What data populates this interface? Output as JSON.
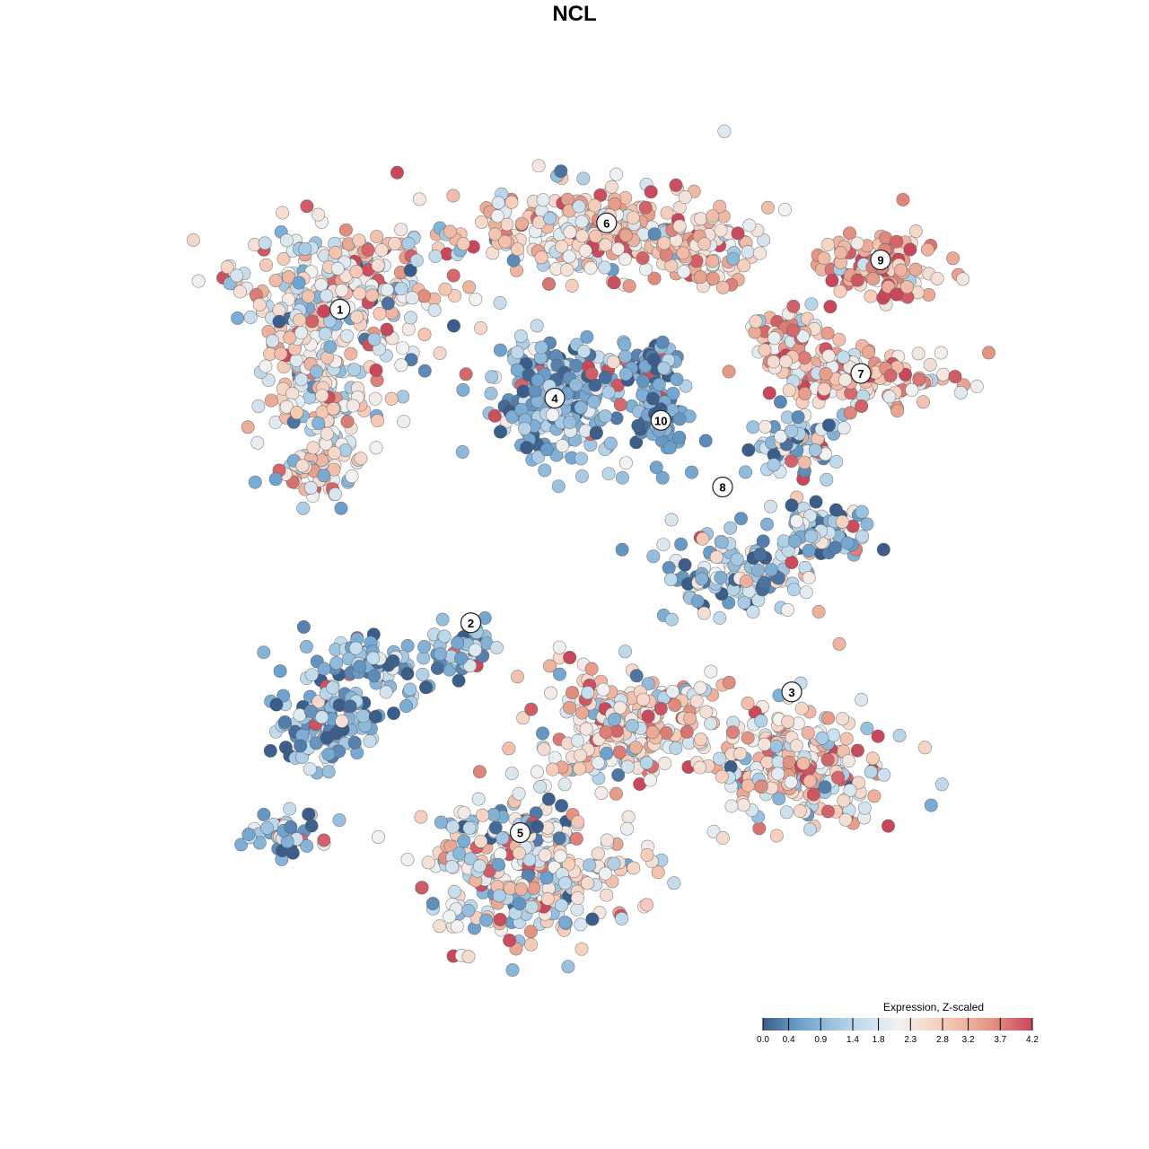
{
  "chart_data": {
    "type": "scatter",
    "title": "NCL",
    "xlabel": "",
    "ylabel": "",
    "grid": false,
    "legend": {
      "title": "Expression, Z-scaled",
      "position": "bottom-right",
      "ticks": [
        0.0,
        0.4,
        0.9,
        1.4,
        1.8,
        2.3,
        2.8,
        3.2,
        3.7,
        4.2
      ],
      "tick_labels": [
        "0.0",
        "0.4",
        "0.9",
        "1.4",
        "1.8",
        "2.3",
        "2.8",
        "3.2",
        "3.7",
        "4.2"
      ],
      "range": [
        0.0,
        4.2
      ]
    },
    "colors": {
      "low": "#3b5d8a",
      "mid_low": "#6fa3cf",
      "light_blue": "#b9d6ea",
      "neutral": "#f2f2f2",
      "light_red": "#f6cdb9",
      "mid_high": "#e59a87",
      "high": "#c8475a"
    },
    "clusters": [
      {
        "label": "1",
        "x": -9.5,
        "y": 8.2,
        "expression_mean": 2.1
      },
      {
        "label": "2",
        "x": -4.2,
        "y": -4.5,
        "expression_mean": 0.9
      },
      {
        "label": "3",
        "x": 8.8,
        "y": -7.3,
        "expression_mean": 2.4
      },
      {
        "label": "4",
        "x": -0.8,
        "y": 4.6,
        "expression_mean": 0.8
      },
      {
        "label": "5",
        "x": -2.2,
        "y": -13.0,
        "expression_mean": 1.9
      },
      {
        "label": "6",
        "x": 1.3,
        "y": 11.7,
        "expression_mean": 2.6
      },
      {
        "label": "7",
        "x": 11.6,
        "y": 5.6,
        "expression_mean": 2.8
      },
      {
        "label": "8",
        "x": 6.0,
        "y": 1.0,
        "expression_mean": 1.2
      },
      {
        "label": "9",
        "x": 12.4,
        "y": 10.2,
        "expression_mean": 3.1
      },
      {
        "label": "10",
        "x": 3.5,
        "y": 3.7,
        "expression_mean": 0.5
      }
    ]
  }
}
